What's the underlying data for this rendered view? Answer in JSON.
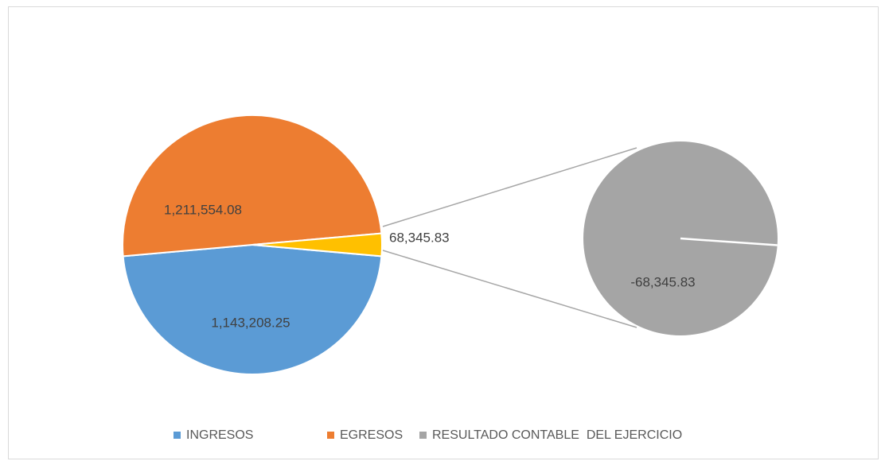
{
  "chart_data": {
    "type": "pie-of-pie",
    "categories": [
      "INGRESOS",
      "EGRESOS",
      "RESULTADO CONTABLE  DEL EJERCICIO"
    ],
    "values": [
      1143208.25,
      1211554.08,
      -68345.83
    ],
    "value_labels": [
      "1,143,208.25",
      "1,211,554.08",
      "-68,345.83"
    ],
    "colors": [
      "#5b9bd5",
      "#ed7d31",
      "#a5a5a5"
    ],
    "other": {
      "value": 68345.83,
      "label": "68,345.83",
      "color": "#ffc000"
    },
    "legend": "bottom"
  }
}
